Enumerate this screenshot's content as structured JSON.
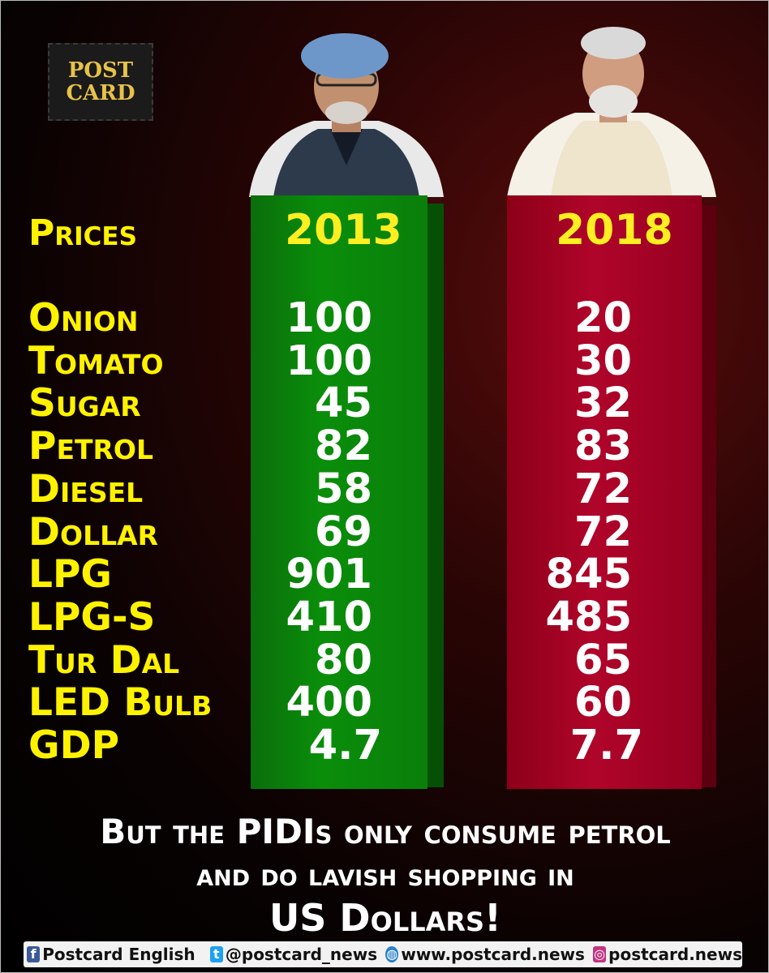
{
  "logo": {
    "line1": "POST",
    "line2": "CARD"
  },
  "header": {
    "prices_label": "Prices",
    "year_left": "2013",
    "year_right": "2018"
  },
  "rows": [
    {
      "label": "Onion",
      "v2013": "100",
      "v2018": "20"
    },
    {
      "label": "Tomato",
      "v2013": "100",
      "v2018": "30"
    },
    {
      "label": "Sugar",
      "v2013": "45",
      "v2018": "32"
    },
    {
      "label": "Petrol",
      "v2013": "82",
      "v2018": "83"
    },
    {
      "label": "Diesel",
      "v2013": "58",
      "v2018": "72"
    },
    {
      "label": "Dollar",
      "v2013": "69",
      "v2018": "72"
    },
    {
      "label": "LPG",
      "v2013": "901",
      "v2018": "845"
    },
    {
      "label": "LPG-S",
      "v2013": "410",
      "v2018": "485"
    },
    {
      "label": "Tur Dal",
      "v2013": "80",
      "v2018": "65"
    },
    {
      "label": "LED Bulb",
      "v2013": "400",
      "v2018": "60"
    },
    {
      "label": "GDP",
      "v2013": "4.7",
      "v2018": "7.7"
    }
  ],
  "tagline": {
    "line1": "But the PIDIs only consume petrol",
    "line2": "and do lavish shopping in",
    "line3": "US Dollars!"
  },
  "footer": {
    "facebook": "Postcard English",
    "twitter": "@postcard_news",
    "website": "www.postcard.news",
    "instagram": "postcard.news"
  },
  "colors": {
    "label_yellow": "#fff200",
    "green_column": "#0a8e0a",
    "red_column": "#b0052a"
  }
}
